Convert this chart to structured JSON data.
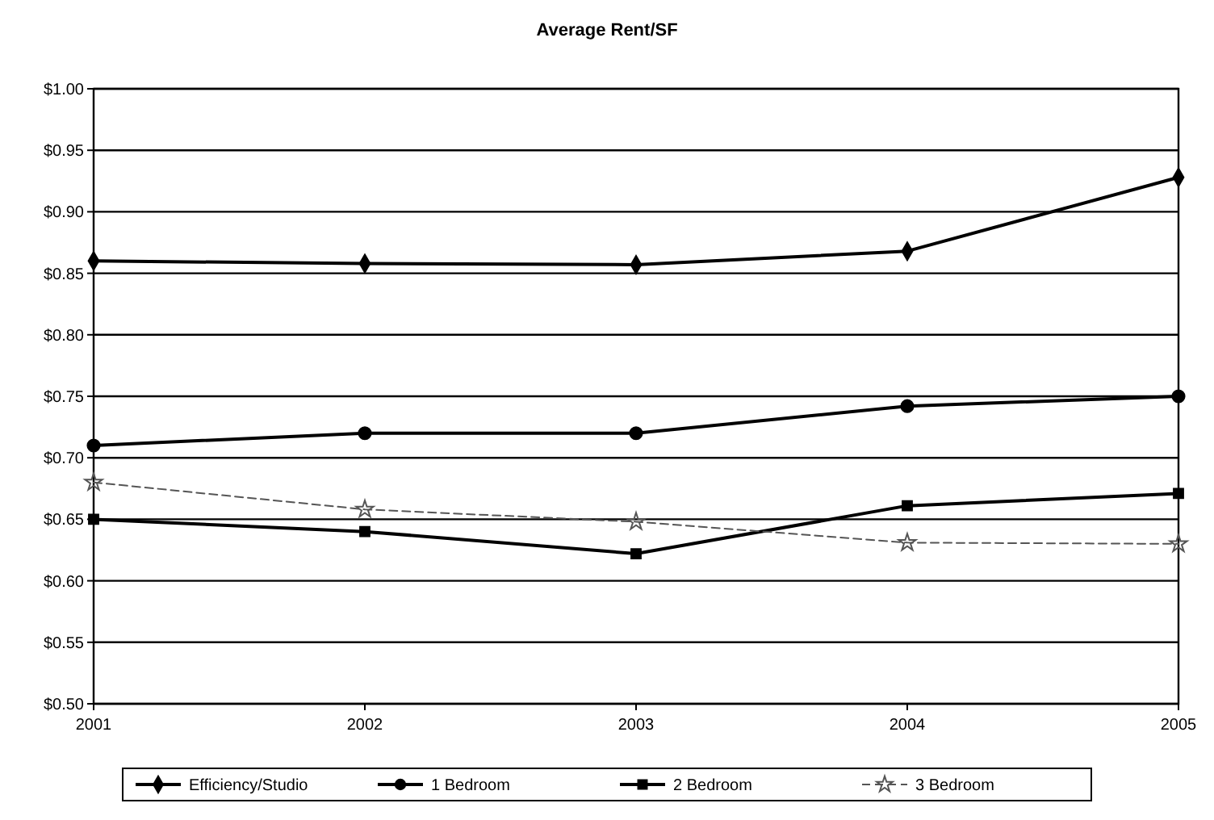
{
  "chart_data": {
    "type": "line",
    "title": "Average Rent/SF",
    "categories": [
      "2001",
      "2002",
      "2003",
      "2004",
      "2005"
    ],
    "series": [
      {
        "name": "Efficiency/Studio",
        "color": "#000000",
        "marker": "diamond",
        "line_style": "solid",
        "values": [
          0.86,
          0.858,
          0.857,
          0.868,
          0.928
        ]
      },
      {
        "name": "1 Bedroom",
        "color": "#000000",
        "marker": "circle",
        "line_style": "solid",
        "values": [
          0.71,
          0.72,
          0.72,
          0.742,
          0.75
        ]
      },
      {
        "name": "2 Bedroom",
        "color": "#000000",
        "marker": "square",
        "line_style": "solid",
        "values": [
          0.65,
          0.64,
          0.622,
          0.661,
          0.671
        ]
      },
      {
        "name": "3 Bedroom",
        "color": "#555555",
        "marker": "star",
        "line_style": "dashed",
        "values": [
          0.68,
          0.658,
          0.648,
          0.631,
          0.63
        ]
      }
    ],
    "ylim": [
      0.5,
      1.0
    ],
    "yticks": [
      {
        "value": 0.5,
        "label": "$0.50"
      },
      {
        "value": 0.55,
        "label": "$0.55"
      },
      {
        "value": 0.6,
        "label": "$0.60"
      },
      {
        "value": 0.65,
        "label": "$0.65"
      },
      {
        "value": 0.7,
        "label": "$0.70"
      },
      {
        "value": 0.75,
        "label": "$0.75"
      },
      {
        "value": 0.8,
        "label": "$0.80"
      },
      {
        "value": 0.85,
        "label": "$0.85"
      },
      {
        "value": 0.9,
        "label": "$0.90"
      },
      {
        "value": 0.95,
        "label": "$0.95"
      },
      {
        "value": 1.0,
        "label": "$1.00"
      }
    ],
    "grid": "y",
    "legend": "bottom"
  }
}
